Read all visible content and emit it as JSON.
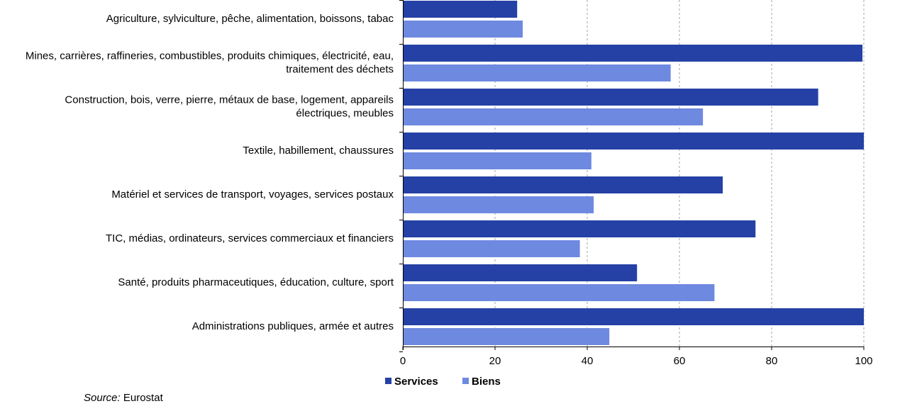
{
  "chart_data": {
    "type": "bar",
    "orientation": "horizontal",
    "categories": [
      [
        "Agriculture, sylviculture, pêche, alimentation, boissons, tabac"
      ],
      [
        "Mines, carrières, raffineries, combustibles, produits chimiques, électricité, eau,",
        "traitement des déchets"
      ],
      [
        "Construction, bois, verre, pierre, métaux de base, logement, appareils",
        "électriques, meubles"
      ],
      [
        "Textile, habillement, chaussures"
      ],
      [
        "Matériel et services de transport, voyages, services postaux"
      ],
      [
        "TIC, médias, ordinateurs, services commerciaux et financiers"
      ],
      [
        "Santé, produits pharmaceutiques, éducation, culture, sport"
      ],
      [
        "Administrations publiques, armée et autres"
      ]
    ],
    "series": [
      {
        "name": "Services",
        "color": "#2541a5",
        "values": [
          24.8,
          99.7,
          90.1,
          100,
          69.4,
          76.5,
          50.8,
          100
        ]
      },
      {
        "name": "Biens",
        "color": "#6e89e0",
        "values": [
          26.0,
          58.1,
          65.1,
          40.9,
          41.4,
          38.4,
          67.6,
          44.8
        ]
      }
    ],
    "xlim": [
      0,
      100
    ],
    "xticks": [
      "0",
      "20",
      "40",
      "60",
      "80",
      "100"
    ],
    "grid": "vertical dashed",
    "legend": "bottom"
  },
  "source": {
    "prefix": "Source:",
    "text": " Eurostat"
  }
}
